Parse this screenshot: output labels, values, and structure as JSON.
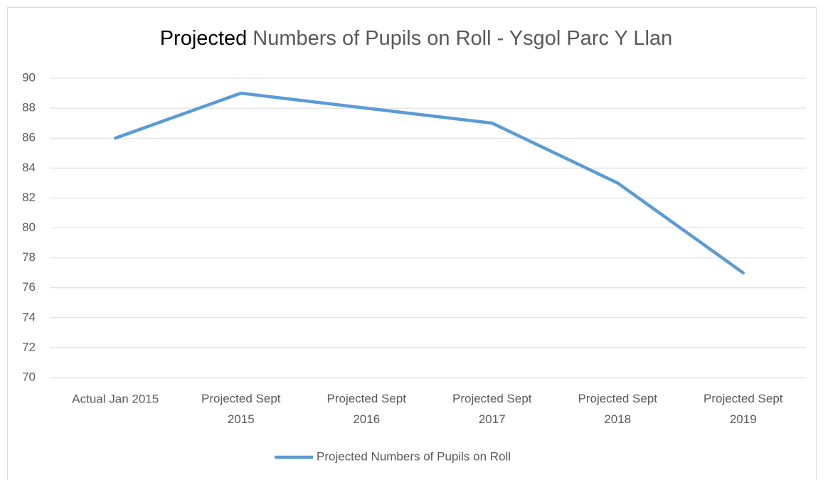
{
  "chart_data": {
    "type": "line",
    "title": "Projected Numbers of Pupils on Roll - Ysgol Parc Y Llan",
    "categories": [
      "Actual Jan 2015",
      "Projected Sept 2015",
      "Projected Sept 2016",
      "Projected Sept 2017",
      "Projected Sept 2018",
      "Projected Sept 2019"
    ],
    "series": [
      {
        "name": "Projected Numbers of Pupils on Roll",
        "color": "#5b9bd5",
        "values": [
          86,
          89,
          88,
          87,
          83,
          77
        ]
      }
    ],
    "ylim": [
      70,
      90
    ],
    "yticks": [
      70,
      72,
      74,
      76,
      78,
      80,
      82,
      84,
      86,
      88,
      90
    ],
    "grid": true,
    "legend": "bottom"
  }
}
